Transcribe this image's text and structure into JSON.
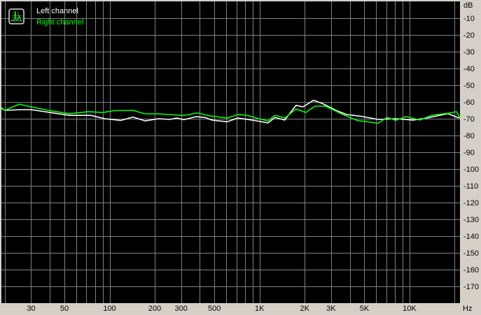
{
  "chart_data": {
    "type": "line",
    "title": "",
    "xlabel": "",
    "ylabel": "",
    "x_unit": "Hz",
    "y_unit": "dB",
    "x_scale": "log",
    "xlim": [
      19,
      21700
    ],
    "ylim": [
      -180,
      0
    ],
    "grid": true,
    "legend_placement": "top-left",
    "background": "#000000",
    "grid_color": "#808080",
    "x_tick_values": [
      30,
      50,
      100,
      200,
      300,
      500,
      1000,
      2000,
      3000,
      5000,
      10000
    ],
    "x_tick_labels": [
      "30",
      "50",
      "100",
      "200",
      "300",
      "500",
      "1K",
      "2K",
      "3K",
      "5K",
      "10K"
    ],
    "y_tick_values": [
      -10,
      -20,
      -30,
      -40,
      -50,
      -60,
      -70,
      -80,
      -90,
      -100,
      -110,
      -120,
      -130,
      -140,
      -150,
      -160,
      -170
    ],
    "y_tick_labels": [
      "-10",
      "-20",
      "-30",
      "-40",
      "-50",
      "-60",
      "-70",
      "-80",
      "-90",
      "-100",
      "-110",
      "-120",
      "-130",
      "-140",
      "-150",
      "-160",
      "-170"
    ],
    "series": [
      {
        "name": "Left channel",
        "color": "#ffffff",
        "points": [
          [
            19,
            -63.8
          ],
          [
            20,
            -65
          ],
          [
            25.5,
            -64.6
          ],
          [
            30,
            -64.6
          ],
          [
            54,
            -68
          ],
          [
            75,
            -68
          ],
          [
            93,
            -70
          ],
          [
            119,
            -71
          ],
          [
            143,
            -69
          ],
          [
            173,
            -71.3
          ],
          [
            212,
            -70
          ],
          [
            252,
            -70.4
          ],
          [
            281,
            -69.6
          ],
          [
            313,
            -70.6
          ],
          [
            376,
            -68.8
          ],
          [
            432,
            -69.2
          ],
          [
            481,
            -70.8
          ],
          [
            609,
            -71.8
          ],
          [
            716,
            -69.6
          ],
          [
            889,
            -70.8
          ],
          [
            1138,
            -72.5
          ],
          [
            1268,
            -69.2
          ],
          [
            1473,
            -70.8
          ],
          [
            1750,
            -62
          ],
          [
            1950,
            -62.9
          ],
          [
            2290,
            -59
          ],
          [
            2605,
            -60.8
          ],
          [
            3230,
            -65
          ],
          [
            3800,
            -67.5
          ],
          [
            4710,
            -68.5
          ],
          [
            6170,
            -70.4
          ],
          [
            8070,
            -70
          ],
          [
            10550,
            -70.8
          ],
          [
            13090,
            -69.6
          ],
          [
            18080,
            -66.9
          ],
          [
            20800,
            -69.2
          ],
          [
            21700,
            -69.6
          ]
        ]
      },
      {
        "name": "Right channel",
        "color": "#00ff00",
        "points": [
          [
            19,
            -63.3
          ],
          [
            20,
            -65
          ],
          [
            25,
            -61.3
          ],
          [
            30,
            -62.9
          ],
          [
            39,
            -65
          ],
          [
            54,
            -67
          ],
          [
            72,
            -65.8
          ],
          [
            90,
            -66.3
          ],
          [
            107,
            -65.2
          ],
          [
            143,
            -65
          ],
          [
            173,
            -67.1
          ],
          [
            212,
            -67.1
          ],
          [
            272,
            -67.7
          ],
          [
            313,
            -68.1
          ],
          [
            384,
            -66.5
          ],
          [
            466,
            -68.3
          ],
          [
            609,
            -69.6
          ],
          [
            716,
            -67.5
          ],
          [
            824,
            -67.9
          ],
          [
            989,
            -70
          ],
          [
            1138,
            -71.3
          ],
          [
            1268,
            -67.9
          ],
          [
            1473,
            -69.6
          ],
          [
            1750,
            -64.2
          ],
          [
            2034,
            -66.25
          ],
          [
            2340,
            -62.5
          ],
          [
            2750,
            -62.5
          ],
          [
            3600,
            -67.5
          ],
          [
            4460,
            -71
          ],
          [
            6170,
            -72.7
          ],
          [
            7090,
            -69.2
          ],
          [
            8070,
            -71
          ],
          [
            9480,
            -68.75
          ],
          [
            11750,
            -70.8
          ],
          [
            14120,
            -67.9
          ],
          [
            18080,
            -66.7
          ],
          [
            20560,
            -65.8
          ],
          [
            21700,
            -69.6
          ]
        ]
      }
    ]
  }
}
